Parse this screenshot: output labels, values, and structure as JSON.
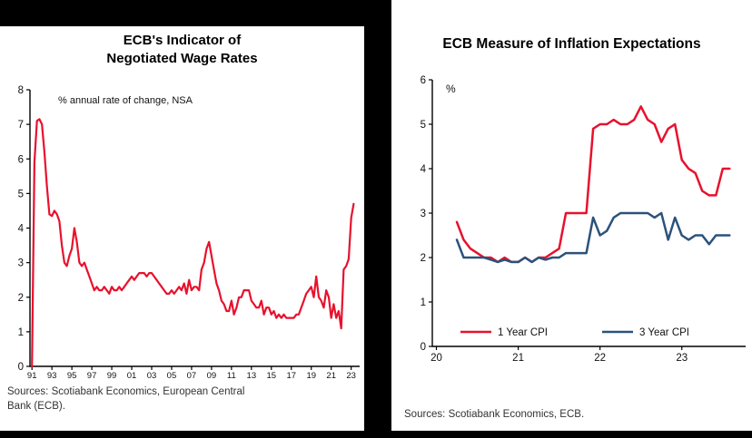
{
  "left_panel": {
    "title_line1": "ECB's Indicator of",
    "title_line2": "Negotiated Wage Rates",
    "source_line1": "Sources: Scotiabank Economics, European Central",
    "source_line2": "Bank (ECB)."
  },
  "right_panel": {
    "title": "ECB Measure of Inflation Expectations",
    "source": "Sources: Scotiabank Economics,  ECB."
  },
  "chart_data": [
    {
      "type": "line",
      "title": "ECB's Indicator of Negotiated Wage Rates",
      "subtitle": "% annual rate of change, NSA",
      "xlabel": "",
      "ylabel": "",
      "ylim": [
        0,
        8
      ],
      "yticks": [
        0,
        1,
        2,
        3,
        4,
        5,
        6,
        7,
        8
      ],
      "xlim": [
        1990.8,
        2023.85
      ],
      "xticks": {
        "values": [
          1991,
          1993,
          1995,
          1997,
          1999,
          2001,
          2003,
          2005,
          2007,
          2009,
          2011,
          2013,
          2015,
          2017,
          2019,
          2021,
          2023
        ],
        "labels": [
          "91",
          "93",
          "95",
          "97",
          "99",
          "01",
          "03",
          "05",
          "07",
          "09",
          "11",
          "13",
          "15",
          "17",
          "19",
          "21",
          "23"
        ]
      },
      "grid": false,
      "x_start": 1991.0,
      "x_step": 0.25,
      "series": [
        {
          "name": "Negotiated wage rates",
          "color": "#e8112d",
          "values": [
            0.0,
            5.9,
            7.1,
            7.15,
            7.0,
            6.2,
            5.2,
            4.4,
            4.35,
            4.5,
            4.4,
            4.2,
            3.5,
            3.0,
            2.9,
            3.2,
            3.4,
            4.0,
            3.6,
            3.0,
            2.9,
            3.0,
            2.8,
            2.6,
            2.4,
            2.2,
            2.3,
            2.2,
            2.2,
            2.3,
            2.2,
            2.1,
            2.3,
            2.2,
            2.2,
            2.3,
            2.2,
            2.3,
            2.4,
            2.5,
            2.6,
            2.5,
            2.6,
            2.7,
            2.7,
            2.7,
            2.6,
            2.7,
            2.7,
            2.6,
            2.5,
            2.4,
            2.3,
            2.2,
            2.1,
            2.1,
            2.2,
            2.1,
            2.2,
            2.3,
            2.2,
            2.4,
            2.1,
            2.5,
            2.2,
            2.3,
            2.3,
            2.2,
            2.8,
            3.0,
            3.4,
            3.6,
            3.2,
            2.8,
            2.4,
            2.2,
            1.9,
            1.8,
            1.6,
            1.6,
            1.9,
            1.5,
            1.7,
            2.0,
            2.0,
            2.2,
            2.2,
            2.2,
            1.9,
            1.8,
            1.7,
            1.7,
            1.9,
            1.5,
            1.7,
            1.7,
            1.5,
            1.6,
            1.4,
            1.5,
            1.4,
            1.5,
            1.4,
            1.4,
            1.4,
            1.4,
            1.5,
            1.5,
            1.7,
            1.9,
            2.1,
            2.2,
            2.3,
            2.0,
            2.6,
            2.0,
            1.9,
            1.7,
            2.2,
            2.0,
            1.4,
            1.8,
            1.4,
            1.6,
            1.1,
            2.8,
            2.9,
            3.1,
            4.3,
            4.7
          ]
        }
      ],
      "source": "Sources: Scotiabank Economics, European Central Bank (ECB)."
    },
    {
      "type": "line",
      "title": "ECB Measure of Inflation Expectations",
      "unit_label": "%",
      "xlabel": "",
      "ylabel": "",
      "ylim": [
        0,
        6
      ],
      "yticks": [
        0,
        1,
        2,
        3,
        4,
        5,
        6
      ],
      "xlim": [
        2019.95,
        2023.78
      ],
      "xticks": {
        "values": [
          2020,
          2021,
          2022,
          2023
        ],
        "labels": [
          "20",
          "21",
          "22",
          "23"
        ]
      },
      "grid": false,
      "legend_position": "inside-bottom",
      "x_start": 2020.25,
      "x_step": 0.08333,
      "series": [
        {
          "name": "1 Year CPI",
          "color": "#e8112d",
          "values": [
            2.8,
            2.4,
            2.2,
            2.1,
            2.0,
            2.0,
            1.9,
            2.0,
            1.9,
            1.9,
            2.0,
            1.9,
            2.0,
            2.0,
            2.1,
            2.2,
            3.0,
            3.0,
            3.0,
            3.0,
            4.9,
            5.0,
            5.0,
            5.1,
            5.0,
            5.0,
            5.1,
            5.4,
            5.1,
            5.0,
            4.6,
            4.9,
            5.0,
            4.2,
            4.0,
            3.9,
            3.5,
            3.4,
            3.4,
            4.0,
            4.0
          ]
        },
        {
          "name": "3 Year CPI",
          "color": "#2b527b",
          "values": [
            2.4,
            2.0,
            2.0,
            2.0,
            2.0,
            1.95,
            1.9,
            1.95,
            1.9,
            1.9,
            2.0,
            1.9,
            2.0,
            1.95,
            2.0,
            2.0,
            2.1,
            2.1,
            2.1,
            2.1,
            2.9,
            2.5,
            2.6,
            2.9,
            3.0,
            3.0,
            3.0,
            3.0,
            3.0,
            2.9,
            3.0,
            2.4,
            2.9,
            2.5,
            2.4,
            2.5,
            2.5,
            2.3,
            2.5,
            2.5,
            2.5
          ]
        }
      ],
      "source": "Sources: Scotiabank Economics,  ECB."
    }
  ]
}
